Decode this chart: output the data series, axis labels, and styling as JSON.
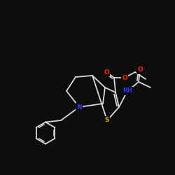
{
  "background_color": "#0d0d0d",
  "bond_color": "#d8d8d8",
  "atom_colors": {
    "N": "#3333ff",
    "S": "#ccaa00",
    "O": "#ff2200"
  },
  "figsize": [
    2.5,
    2.5
  ],
  "dpi": 100
}
